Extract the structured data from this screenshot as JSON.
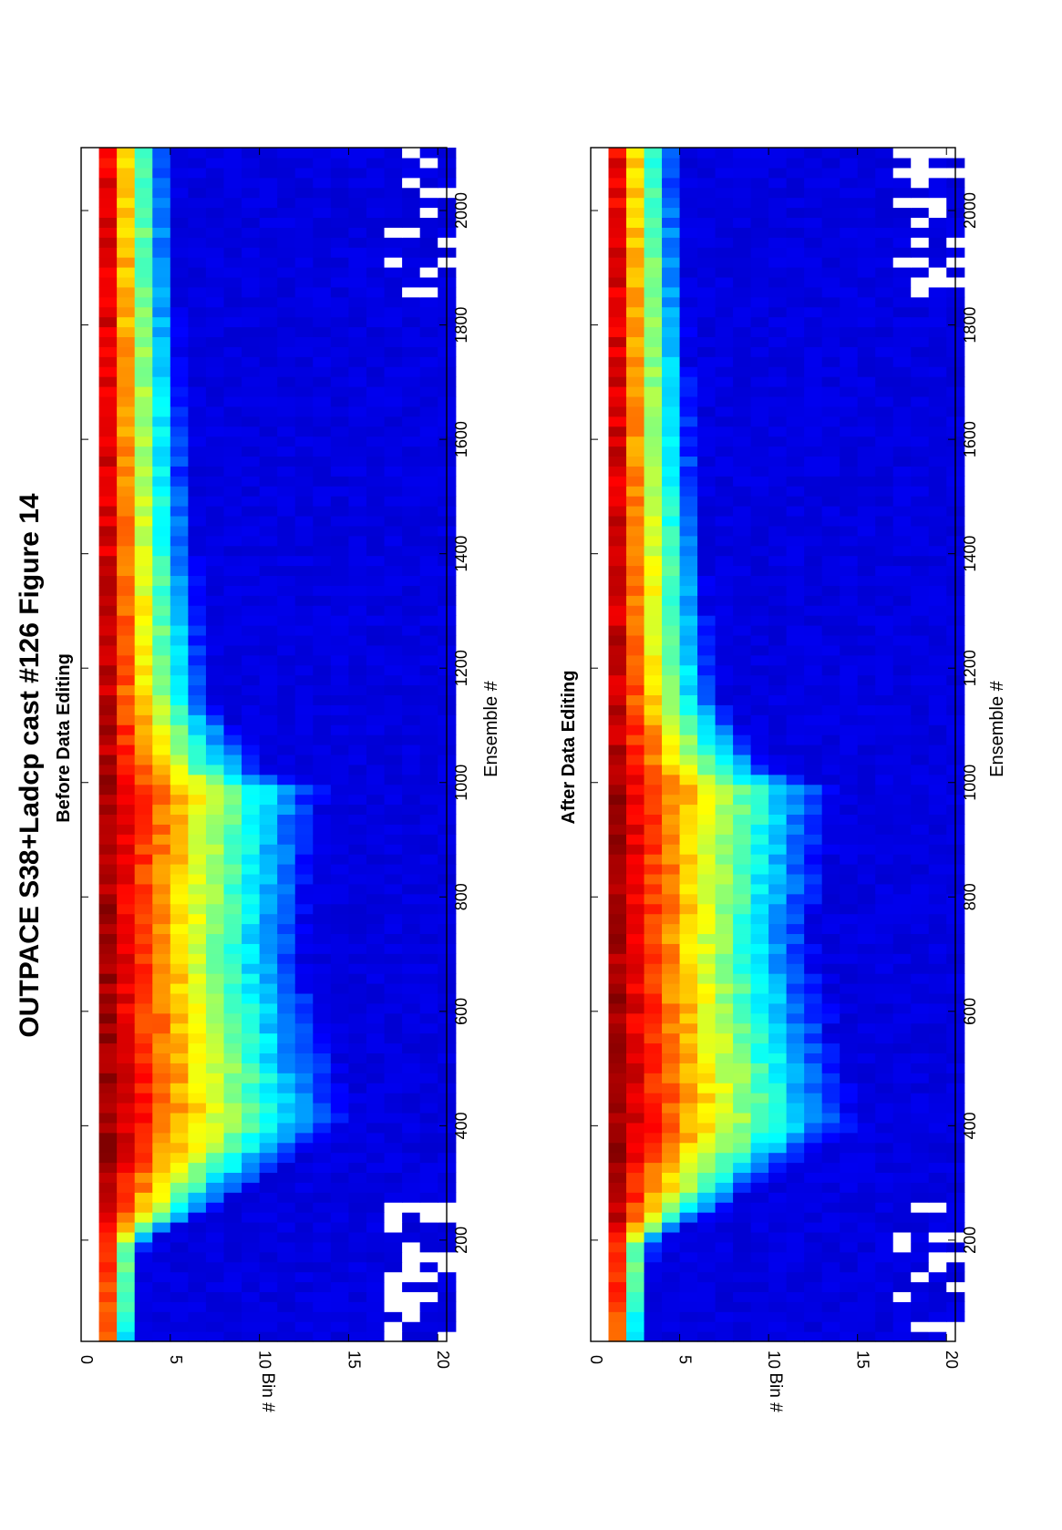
{
  "figure": {
    "title": "OUTPACE S38+Ladcp cast #126  Figure 14"
  },
  "chart_data": [
    {
      "type": "heatmap",
      "title": "Before Data Editing",
      "xlabel": "Ensemble #",
      "ylabel": "Bin #",
      "xlim": [
        23,
        2110
      ],
      "ylim": [
        0,
        20.5
      ],
      "x_ticks": [
        200,
        400,
        600,
        800,
        1000,
        1200,
        1400,
        1600,
        1800,
        2000
      ],
      "y_ticks": [
        0,
        5,
        10,
        15,
        20
      ],
      "first_bin_blank": true,
      "colormap": "jet",
      "noise_bins": [
        17,
        20
      ],
      "profile_knots_x": [
        23,
        200,
        250,
        400,
        430,
        700,
        1000,
        1010,
        1150,
        1500,
        2110
      ],
      "profile_knots_level": [
        0.0,
        0.05,
        0.35,
        1.0,
        1.0,
        0.8,
        0.9,
        0.65,
        0.35,
        0.25,
        0.15
      ]
    },
    {
      "type": "heatmap",
      "title": "After Data Editing",
      "xlabel": "Ensemble #",
      "ylabel": "Bin #",
      "xlim": [
        23,
        2110
      ],
      "ylim": [
        0,
        20.5
      ],
      "x_ticks": [
        200,
        400,
        600,
        800,
        1000,
        1200,
        1400,
        1600,
        1800,
        2000
      ],
      "y_ticks": [
        0,
        5,
        10,
        15,
        20
      ],
      "first_bin_blank": true,
      "colormap": "jet",
      "noise_bins": [
        17,
        20
      ],
      "profile_knots_x": [
        23,
        200,
        250,
        400,
        430,
        700,
        1000,
        1010,
        1150,
        1500,
        2110
      ],
      "profile_knots_level": [
        0.0,
        0.05,
        0.35,
        1.0,
        1.0,
        0.8,
        0.9,
        0.65,
        0.35,
        0.25,
        0.15
      ]
    }
  ]
}
